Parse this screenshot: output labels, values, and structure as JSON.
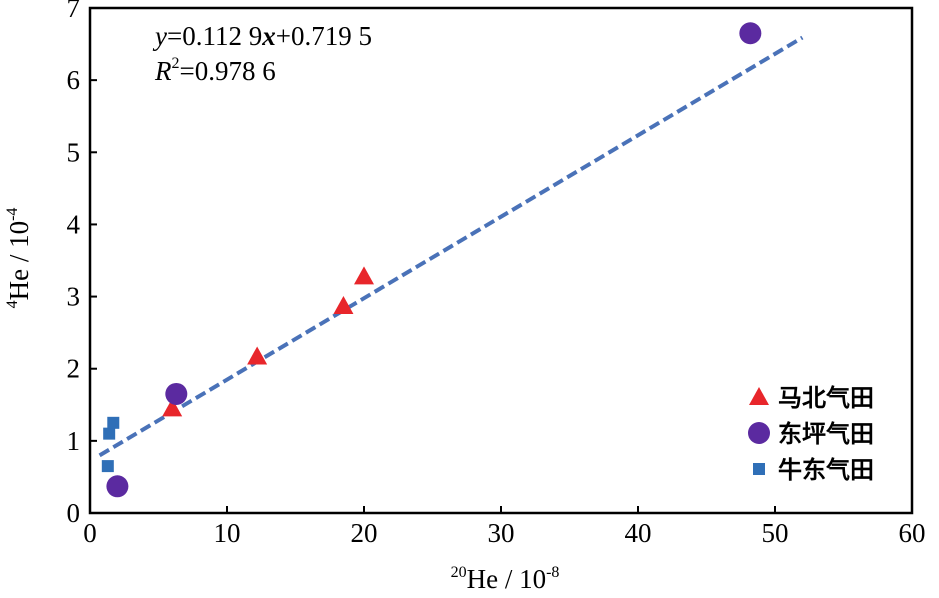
{
  "chart_data": {
    "type": "scatter",
    "xlabel": {
      "sup": "20",
      "main": "He / 10",
      "exp": "-8"
    },
    "ylabel": {
      "sup": "4",
      "main": "He / 10",
      "exp": "-4"
    },
    "xlim": [
      0,
      60
    ],
    "ylim": [
      0,
      7
    ],
    "xticks": [
      0,
      10,
      20,
      30,
      40,
      50,
      60
    ],
    "yticks": [
      0,
      1,
      2,
      3,
      4,
      5,
      6,
      7
    ],
    "xtick_labels": [
      "0",
      "10",
      "20",
      "30",
      "40",
      "50",
      "60"
    ],
    "ytick_labels": [
      "0",
      "1",
      "2",
      "3",
      "4",
      "5",
      "6",
      "7"
    ],
    "grid": false,
    "legend_position": "bottom-right",
    "fit": {
      "slope": 0.1129,
      "intercept": 0.7195,
      "x_range": [
        0.7,
        52
      ],
      "equation_y": "y",
      "equation_rest": "=0.112 9",
      "equation_x": "x",
      "equation_tail": "+0.719 5",
      "r2_var": "R",
      "r2_exp": "2",
      "r2_value": "=0.978 6",
      "color": "#4a72b8"
    },
    "series": [
      {
        "name": "马北气田",
        "marker": "triangle",
        "color": "#e8262b",
        "points": [
          [
            6.0,
            1.45
          ],
          [
            12.2,
            2.17
          ],
          [
            18.5,
            2.87
          ],
          [
            20.0,
            3.28
          ]
        ]
      },
      {
        "name": "东坪气田",
        "marker": "circle",
        "color": "#5b2aa0",
        "points": [
          [
            2.0,
            0.37
          ],
          [
            6.3,
            1.65
          ],
          [
            48.2,
            6.65
          ]
        ]
      },
      {
        "name": "牛东气田",
        "marker": "square",
        "color": "#2f6fb7",
        "points": [
          [
            1.3,
            0.65
          ],
          [
            1.4,
            1.1
          ],
          [
            1.7,
            1.25
          ]
        ]
      }
    ]
  }
}
